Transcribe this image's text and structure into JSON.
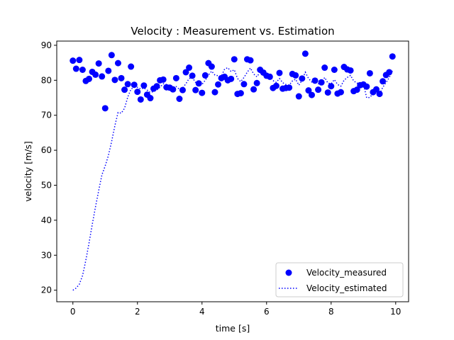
{
  "chart_data": {
    "type": "scatter",
    "title": "Velocity : Measurement vs. Estimation",
    "xlabel": "time [s]",
    "ylabel": "velocity [m/s]",
    "xlim": [
      -0.5,
      10.4
    ],
    "ylim": [
      16.7,
      91.2
    ],
    "xticks": [
      0,
      2,
      4,
      6,
      8,
      10
    ],
    "yticks": [
      20,
      30,
      40,
      50,
      60,
      70,
      80,
      90
    ],
    "grid": false,
    "legend_position": "bottom-right",
    "colors": {
      "series": "#0000ff",
      "axes": "#000000",
      "background": "#ffffff"
    },
    "series": [
      {
        "name": "Velocity_measured",
        "kind": "scatter",
        "marker": "circle",
        "x": [
          0.0,
          0.1,
          0.2,
          0.3,
          0.4,
          0.5,
          0.6,
          0.7,
          0.8,
          0.9,
          1.0,
          1.1,
          1.2,
          1.3,
          1.4,
          1.5,
          1.6,
          1.7,
          1.8,
          1.9,
          2.0,
          2.1,
          2.2,
          2.3,
          2.4,
          2.5,
          2.6,
          2.7,
          2.8,
          2.9,
          3.0,
          3.1,
          3.2,
          3.3,
          3.4,
          3.5,
          3.6,
          3.7,
          3.8,
          3.9,
          4.0,
          4.1,
          4.2,
          4.3,
          4.4,
          4.5,
          4.6,
          4.7,
          4.8,
          4.9,
          5.0,
          5.1,
          5.2,
          5.3,
          5.4,
          5.5,
          5.6,
          5.7,
          5.8,
          5.9,
          6.0,
          6.1,
          6.2,
          6.3,
          6.4,
          6.5,
          6.6,
          6.7,
          6.8,
          6.9,
          7.0,
          7.1,
          7.2,
          7.3,
          7.4,
          7.5,
          7.6,
          7.7,
          7.8,
          7.9,
          8.0,
          8.1,
          8.2,
          8.3,
          8.4,
          8.5,
          8.6,
          8.7,
          8.8,
          8.9,
          9.0,
          9.1,
          9.2,
          9.3,
          9.4,
          9.5,
          9.6,
          9.7,
          9.8,
          9.9
        ],
        "y": [
          85.6,
          83.3,
          85.8,
          83.0,
          79.8,
          80.4,
          82.4,
          81.6,
          84.8,
          81.1,
          72.0,
          82.7,
          87.2,
          80.1,
          84.9,
          80.6,
          77.3,
          78.9,
          83.9,
          78.7,
          76.7,
          74.5,
          78.5,
          75.9,
          74.9,
          77.6,
          78.3,
          80.0,
          80.2,
          78.0,
          77.9,
          77.4,
          80.6,
          74.7,
          77.2,
          82.3,
          83.6,
          81.3,
          77.2,
          79.1,
          76.4,
          81.4,
          84.9,
          83.9,
          76.6,
          78.8,
          80.6,
          81.0,
          80.0,
          80.4,
          86.0,
          76.1,
          76.3,
          78.9,
          86.0,
          85.7,
          77.4,
          79.2,
          83.0,
          82.2,
          81.3,
          81.0,
          77.8,
          78.4,
          82.1,
          77.6,
          77.8,
          77.9,
          81.8,
          81.4,
          75.4,
          80.5,
          87.6,
          77.1,
          75.8,
          79.9,
          77.3,
          79.4,
          83.6,
          76.5,
          78.3,
          83.0,
          76.2,
          76.6,
          83.8,
          83.1,
          82.8,
          76.9,
          77.3,
          78.6,
          78.8,
          78.2,
          82.0,
          76.6,
          77.4,
          76.1,
          79.7,
          81.5,
          82.3,
          86.8
        ]
      },
      {
        "name": "Velocity_estimated",
        "kind": "line",
        "linestyle": "dotted",
        "x": [
          0.0,
          0.1,
          0.2,
          0.3,
          0.4,
          0.5,
          0.6,
          0.7,
          0.8,
          0.9,
          1.0,
          1.1,
          1.2,
          1.3,
          1.4,
          1.5,
          1.6,
          1.7,
          1.8,
          1.9,
          2.0,
          2.1,
          2.2,
          2.3,
          2.4,
          2.5,
          2.6,
          2.7,
          2.8,
          2.9,
          3.0,
          3.1,
          3.2,
          3.3,
          3.4,
          3.5,
          3.6,
          3.7,
          3.8,
          3.9,
          4.0,
          4.1,
          4.2,
          4.3,
          4.4,
          4.5,
          4.6,
          4.7,
          4.8,
          4.9,
          5.0,
          5.1,
          5.2,
          5.3,
          5.4,
          5.5,
          5.6,
          5.7,
          5.8,
          5.9,
          6.0,
          6.1,
          6.2,
          6.3,
          6.4,
          6.5,
          6.6,
          6.7,
          6.8,
          6.9,
          7.0,
          7.1,
          7.2,
          7.3,
          7.4,
          7.5,
          7.6,
          7.7,
          7.8,
          7.9,
          8.0,
          8.1,
          8.2,
          8.3,
          8.4,
          8.5,
          8.6,
          8.7,
          8.8,
          8.9,
          9.0,
          9.1,
          9.2,
          9.3,
          9.4,
          9.5,
          9.6,
          9.7,
          9.8,
          9.9
        ],
        "y": [
          20.0,
          20.6,
          21.7,
          24.2,
          28.5,
          33.5,
          38.8,
          43.8,
          48.5,
          53.0,
          55.5,
          58.5,
          62.5,
          67.0,
          70.8,
          70.6,
          72.0,
          75.2,
          77.5,
          78.0,
          78.0,
          77.5,
          77.8,
          77.2,
          76.5,
          76.8,
          77.2,
          78.0,
          79.0,
          78.8,
          78.5,
          77.8,
          78.2,
          77.4,
          77.8,
          79.0,
          80.5,
          80.8,
          79.4,
          79.5,
          78.8,
          80.0,
          81.5,
          82.6,
          81.5,
          81.3,
          81.2,
          83.2,
          83.6,
          82.5,
          83.0,
          80.5,
          79.6,
          80.8,
          82.3,
          83.5,
          81.8,
          81.0,
          82.3,
          82.0,
          81.6,
          81.2,
          79.9,
          79.4,
          80.5,
          79.3,
          78.8,
          78.6,
          79.8,
          80.3,
          78.6,
          80.0,
          82.3,
          80.5,
          79.5,
          79.9,
          79.0,
          79.3,
          80.8,
          79.2,
          79.0,
          80.2,
          78.8,
          78.3,
          80.0,
          80.8,
          81.4,
          79.8,
          79.2,
          79.0,
          79.0,
          75.0,
          75.1,
          76.3,
          76.6,
          76.0,
          78.0,
          79.3,
          80.8,
          82.7
        ]
      }
    ]
  }
}
